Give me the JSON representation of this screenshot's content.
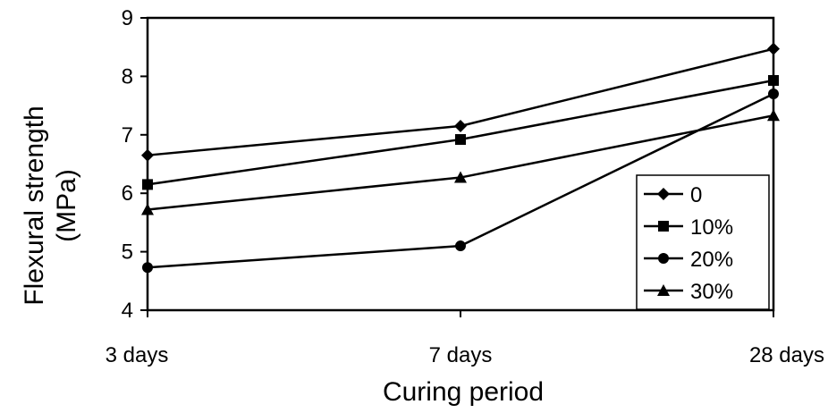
{
  "chart_data": {
    "type": "line",
    "title": "",
    "xlabel": "Curing period",
    "ylabel": "Flexural strength (MPa)",
    "ylabel_lines": [
      "Flexural strength",
      "(MPa)"
    ],
    "categories": [
      "3 days",
      "7 days",
      "28 days"
    ],
    "ylim": [
      4,
      9
    ],
    "yticks": [
      "4",
      "5",
      "6",
      "7",
      "8",
      "9"
    ],
    "grid": false,
    "legend_position": "bottom-right inside plot",
    "series": [
      {
        "name": "0",
        "marker": "diamond",
        "values": [
          6.65,
          7.15,
          8.47
        ]
      },
      {
        "name": "10%",
        "marker": "square",
        "values": [
          6.15,
          6.92,
          7.93
        ]
      },
      {
        "name": "20%",
        "marker": "circle",
        "values": [
          4.73,
          5.1,
          7.7
        ]
      },
      {
        "name": "30%",
        "marker": "triangle",
        "values": [
          5.72,
          6.27,
          7.33
        ]
      }
    ],
    "colors": {
      "line": "#000000",
      "background": "#ffffff"
    }
  }
}
